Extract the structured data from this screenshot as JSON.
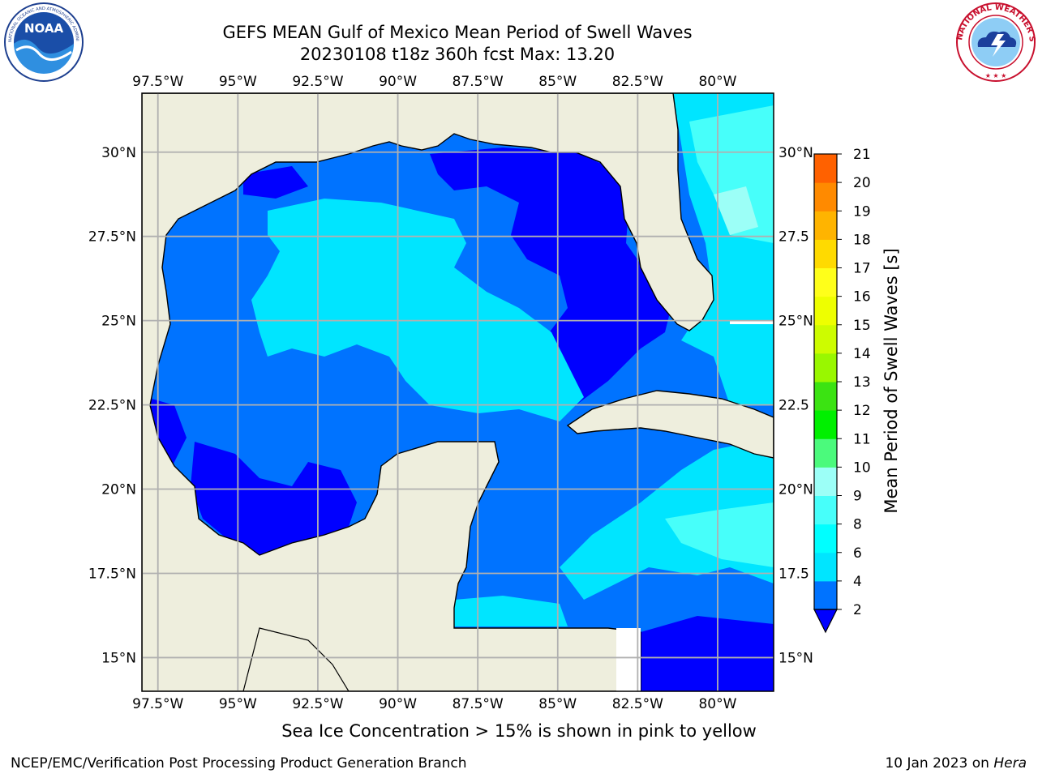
{
  "title": {
    "line1": "GEFS MEAN Gulf of Mexico Mean Period of Swell Waves",
    "line2": "20230108 t18z 360h fcst   Max: 13.20"
  },
  "axes": {
    "lon_labels": [
      "97.5°W",
      "95°W",
      "92.5°W",
      "90°W",
      "87.5°W",
      "85°W",
      "82.5°W",
      "80°W"
    ],
    "lat_labels_left": [
      "30°N",
      "27.5°N",
      "25°N",
      "22.5°N",
      "20°N",
      "17.5°N",
      "15°N"
    ],
    "lat_labels_right": [
      "30°N",
      "27.5",
      "25°N",
      "22.5",
      "20°N",
      "17.5",
      "15°N"
    ]
  },
  "colorbar": {
    "label": "Mean Period of Swell Waves [s]",
    "ticks": [
      "2",
      "4",
      "6",
      "8",
      "9",
      "10",
      "11",
      "12",
      "13",
      "14",
      "15",
      "16",
      "17",
      "18",
      "19",
      "20",
      "21"
    ],
    "colors": [
      "#0000ff",
      "#0073ff",
      "#00e5ff",
      "#00ffff",
      "#47fffa",
      "#9cfff7",
      "#4bfa7c",
      "#00f000",
      "#3be312",
      "#99f700",
      "#cdfc00",
      "#eeff00",
      "#ffff1a",
      "#ffda00",
      "#ffb400",
      "#ff8a00",
      "#ff6100",
      "#ff3c00",
      "#ff0000"
    ]
  },
  "chart_data": {
    "type": "heatmap",
    "title": "GEFS MEAN Gulf of Mexico Mean Period of Swell Waves",
    "subtitle": "20230108 t18z 360h fcst   Max: 13.20",
    "variable": "Mean Period of Swell Waves [s]",
    "max_value": 13.2,
    "xlim": [
      -98,
      -78.25
    ],
    "ylim": [
      14,
      31.75
    ],
    "x_ticks": [
      -97.5,
      -95,
      -92.5,
      -90,
      -87.5,
      -85,
      -82.5,
      -80
    ],
    "y_ticks": [
      30,
      27.5,
      25,
      22.5,
      20,
      17.5,
      15
    ],
    "colorbar_levels": [
      2,
      4,
      6,
      8,
      9,
      10,
      11,
      12,
      13,
      14,
      15,
      16,
      17,
      18,
      19,
      20,
      21
    ],
    "grid": true
  },
  "caption": "Sea Ice Concentration > 15% is shown in pink to yellow",
  "footer": {
    "left": "NCEP/EMC/Verification Post Processing Product Generation Branch",
    "right_date": "10 Jan 2023 on ",
    "right_host": "Hera"
  },
  "logos": {
    "left": "NOAA",
    "left_ring": "NATIONAL OCEANIC AND ATMOSPHERIC ADMINISTRATION · U.S. DEPARTMENT OF COMMERCE",
    "right_ring": "NATIONAL WEATHER SERVICE"
  },
  "colors": {
    "land": "#eeeedd",
    "grid": "#b0b0b0",
    "band_2_4": "#0073ff",
    "band_lt2": "#0000ff",
    "band_4_6": "#00e5ff",
    "band_6_8": "#00ffff",
    "band_8_9": "#47fffa"
  }
}
